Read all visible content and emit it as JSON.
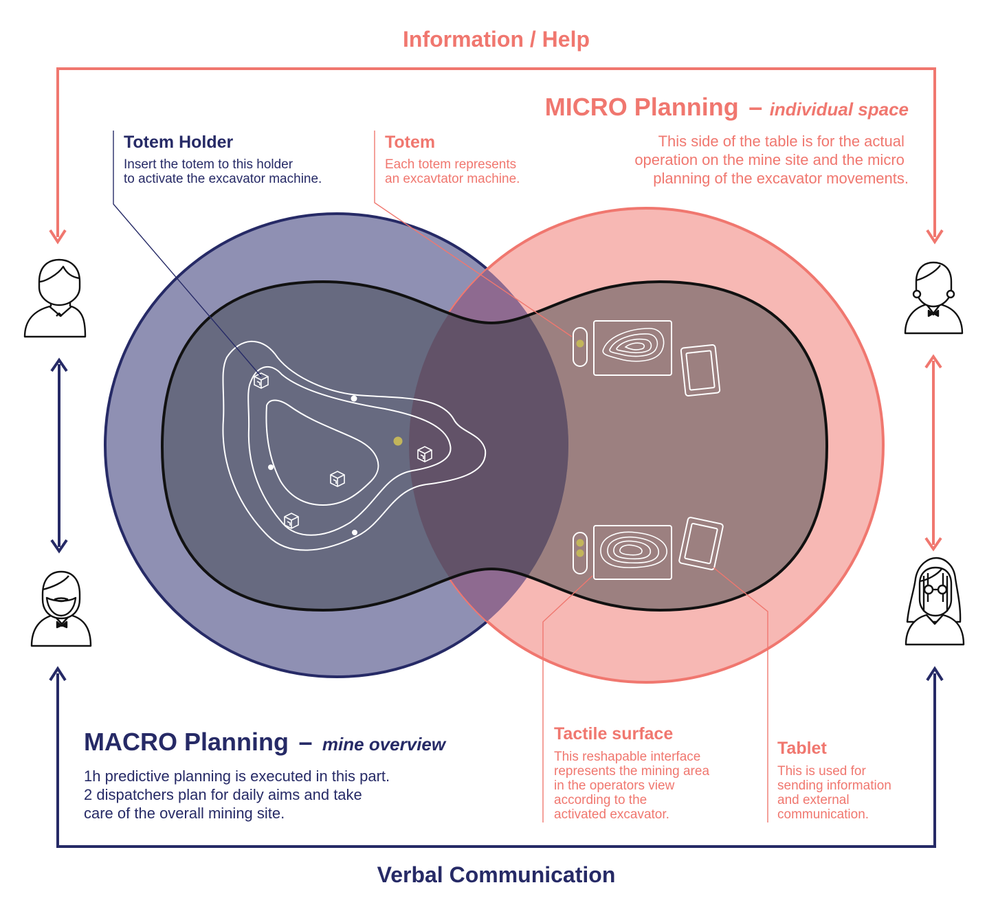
{
  "labels": {
    "top_flow": "Information / Help",
    "bottom_flow": "Verbal Communication"
  },
  "micro": {
    "title": "MICRO Planning",
    "dash": "–",
    "subtitle": "individual space",
    "lines": [
      "This side of the table is for the actual",
      "operation on the mine site and the micro",
      "planning of the excavator movements."
    ]
  },
  "macro": {
    "title": "MACRO Planning",
    "dash": "–",
    "subtitle": "mine overview",
    "lines": [
      "1h predictive planning is executed in this part.",
      "2 dispatchers plan for daily aims and take",
      "care of the overall mining site."
    ]
  },
  "callouts": {
    "totem_holder": {
      "title": "Totem Holder",
      "lines": [
        "Insert the totem to this holder",
        "to activate the excavator machine."
      ]
    },
    "totem": {
      "title": "Totem",
      "lines": [
        "Each totem represents",
        "an excavtator machine."
      ]
    },
    "tactile_surface": {
      "title": "Tactile surface",
      "lines": [
        "This reshapable interface",
        "represents the mining area",
        "in the operators view",
        "according to the",
        "activated excavator."
      ]
    },
    "tablet": {
      "title": "Tablet",
      "lines": [
        "This is used for",
        "sending information",
        "and external",
        "communication."
      ]
    }
  },
  "people": {
    "left_top": "user-icon",
    "left_bottom": "bearded-user-icon",
    "right_top": "female-user-icon",
    "right_bottom": "glasses-user-icon"
  },
  "colors": {
    "coral": "#f0776f",
    "navy": "#262a66",
    "macro_fill": "#8f90b3",
    "micro_fill": "#f7b8b4",
    "table_left": "#676a80",
    "table_right": "#9c8080",
    "totem": "#c2b55b"
  }
}
